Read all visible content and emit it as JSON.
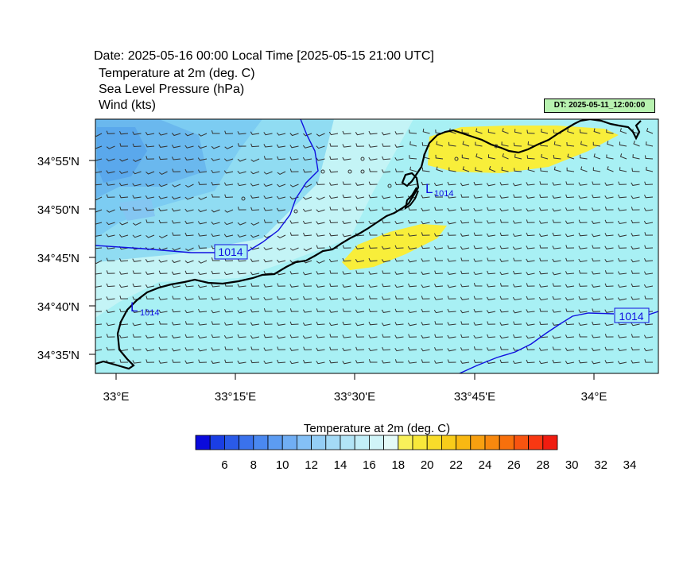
{
  "header": {
    "date_line": "Date: 2025-05-16  00:00 Local Time [2025-05-15  21:00 UTC]",
    "field_lines": [
      "Temperature at 2m   (deg. C)",
      "Sea Level Pressure   (hPa)",
      "Wind   (kts)"
    ],
    "dt_box": "DT: 2025-05-11_12:00:00"
  },
  "map": {
    "lat_ticks": [
      "34°55'N",
      "34°50'N",
      "34°45'N",
      "34°40'N",
      "34°35'N"
    ],
    "lon_ticks": [
      "33°E",
      "33°15'E",
      "33°30'E",
      "33°45'E",
      "34°E"
    ],
    "isobar_labels": [
      "1014",
      "1014"
    ],
    "lows": [
      {
        "symbol": "L",
        "value": "1014"
      },
      {
        "symbol": "L",
        "value": "1014"
      }
    ],
    "sea_color": "#a8f0f4",
    "warm_color": "#f8ee3a",
    "isobar_color": "#1010e0"
  },
  "colorbar": {
    "title": "Temperature at 2m  (deg. C)",
    "labels": [
      "6",
      "8",
      "10",
      "12",
      "14",
      "16",
      "18",
      "20",
      "22",
      "24",
      "26",
      "28",
      "30",
      "32",
      "34"
    ],
    "colors": [
      "#0a0adc",
      "#1a3ee4",
      "#2a5ae8",
      "#3a72ec",
      "#4a88f0",
      "#5c9cf2",
      "#70aef4",
      "#84c0f6",
      "#94cef6",
      "#a4daf6",
      "#b2e4f6",
      "#c2eef8",
      "#d0f4f8",
      "#e4faf8",
      "#f8f05a",
      "#f8e83a",
      "#f8dc2a",
      "#f8cc1a",
      "#f8b812",
      "#f8a010",
      "#f8880e",
      "#f8700c",
      "#f85410",
      "#f83812",
      "#f01c10"
    ]
  }
}
